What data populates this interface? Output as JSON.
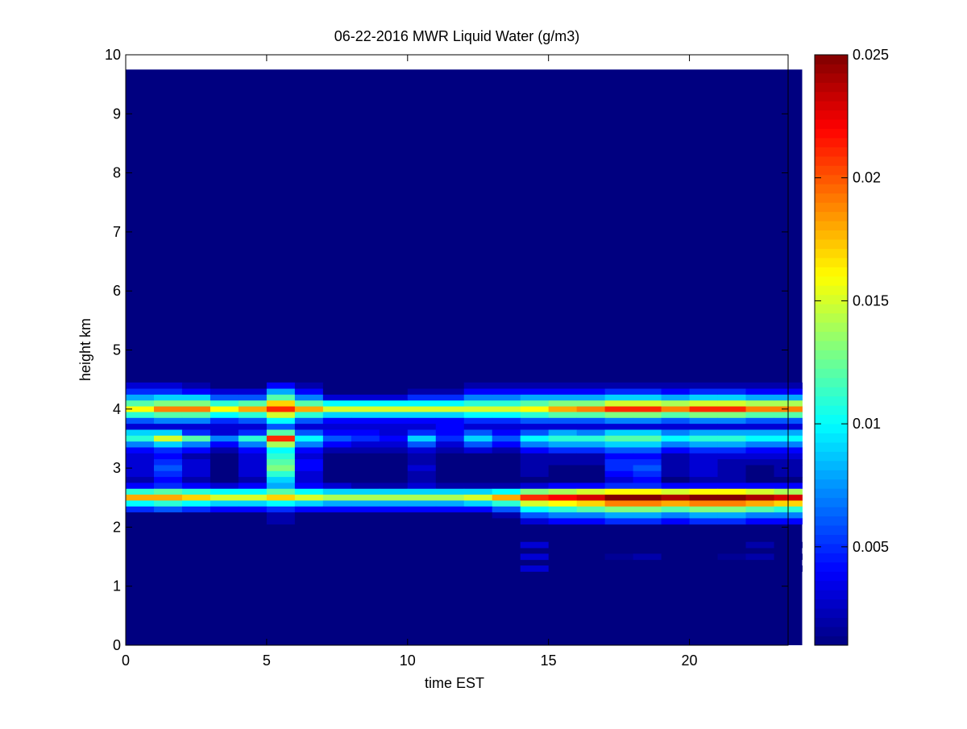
{
  "chart_data": {
    "type": "heatmap",
    "title": "06-22-2016 MWR Liquid Water (g/m3)",
    "xlabel": "time EST",
    "ylabel": "height km",
    "xlim": [
      0,
      23.5
    ],
    "ylim": [
      0,
      10
    ],
    "x_ticks": [
      "0",
      "5",
      "10",
      "15",
      "20"
    ],
    "y_ticks": [
      "0",
      "1",
      "2",
      "3",
      "4",
      "5",
      "6",
      "7",
      "8",
      "9",
      "10"
    ],
    "colormap": "jet",
    "color_range": [
      0.001,
      0.025
    ],
    "colorbar_ticks": [
      "0.005",
      "0.01",
      "0.015",
      "0.02",
      "0.025"
    ],
    "grid": false,
    "time_bins": {
      "start": 0,
      "step": 1,
      "count": 24
    },
    "data_top_km": 9.75,
    "background_value": 0.001,
    "layers": [
      {
        "height_km": 4.0,
        "values": [
          0.016,
          0.019,
          0.019,
          0.016,
          0.018,
          0.021,
          0.018,
          0.015,
          0.015,
          0.015,
          0.015,
          0.015,
          0.015,
          0.015,
          0.016,
          0.018,
          0.019,
          0.021,
          0.021,
          0.019,
          0.021,
          0.021,
          0.019,
          0.019
        ]
      },
      {
        "height_km": 4.1,
        "values": [
          0.012,
          0.013,
          0.013,
          0.011,
          0.012,
          0.017,
          0.012,
          0.01,
          0.01,
          0.01,
          0.01,
          0.01,
          0.011,
          0.011,
          0.012,
          0.013,
          0.013,
          0.015,
          0.015,
          0.014,
          0.015,
          0.015,
          0.014,
          0.014
        ]
      },
      {
        "height_km": 3.9,
        "values": [
          0.011,
          0.012,
          0.012,
          0.01,
          0.011,
          0.015,
          0.011,
          0.009,
          0.009,
          0.009,
          0.009,
          0.009,
          0.01,
          0.01,
          0.011,
          0.012,
          0.012,
          0.013,
          0.013,
          0.012,
          0.013,
          0.013,
          0.012,
          0.012
        ]
      },
      {
        "height_km": 4.2,
        "values": [
          0.008,
          0.009,
          0.009,
          0.006,
          0.006,
          0.012,
          0.007,
          0.003,
          0.003,
          0.003,
          0.005,
          0.005,
          0.007,
          0.007,
          0.008,
          0.008,
          0.008,
          0.009,
          0.009,
          0.008,
          0.009,
          0.009,
          0.008,
          0.008
        ]
      },
      {
        "height_km": 3.8,
        "values": [
          0.006,
          0.007,
          0.007,
          0.005,
          0.006,
          0.01,
          0.006,
          0.004,
          0.004,
          0.004,
          0.004,
          0.004,
          0.005,
          0.005,
          0.006,
          0.006,
          0.006,
          0.007,
          0.007,
          0.006,
          0.007,
          0.007,
          0.006,
          0.006
        ]
      },
      {
        "height_km": 4.3,
        "values": [
          0.005,
          0.005,
          0.004,
          0.003,
          0.003,
          0.008,
          0.004,
          0.001,
          0.001,
          0.001,
          0.002,
          0.002,
          0.004,
          0.004,
          0.004,
          0.004,
          0.004,
          0.005,
          0.005,
          0.004,
          0.005,
          0.005,
          0.004,
          0.004
        ]
      },
      {
        "height_km": 4.4,
        "values": [
          0.003,
          0.003,
          0.002,
          0.001,
          0.001,
          0.004,
          0.002,
          0.001,
          0.001,
          0.001,
          0.001,
          0.001,
          0.002,
          0.002,
          0.002,
          0.002,
          0.002,
          0.002,
          0.002,
          0.002,
          0.002,
          0.002,
          0.002,
          0.002
        ]
      },
      {
        "height_km": 3.7,
        "values": [
          0.003,
          0.003,
          0.003,
          0.003,
          0.003,
          0.006,
          0.003,
          0.003,
          0.003,
          0.003,
          0.003,
          0.004,
          0.003,
          0.003,
          0.003,
          0.003,
          0.003,
          0.003,
          0.003,
          0.003,
          0.003,
          0.003,
          0.003,
          0.003
        ]
      },
      {
        "height_km": 3.6,
        "values": [
          0.009,
          0.009,
          0.005,
          0.003,
          0.005,
          0.012,
          0.006,
          0.004,
          0.004,
          0.003,
          0.005,
          0.004,
          0.006,
          0.004,
          0.006,
          0.008,
          0.007,
          0.009,
          0.009,
          0.007,
          0.008,
          0.008,
          0.008,
          0.008
        ]
      },
      {
        "height_km": 3.5,
        "values": [
          0.011,
          0.015,
          0.012,
          0.007,
          0.011,
          0.021,
          0.01,
          0.006,
          0.005,
          0.004,
          0.009,
          0.005,
          0.009,
          0.006,
          0.01,
          0.011,
          0.011,
          0.012,
          0.012,
          0.01,
          0.011,
          0.011,
          0.01,
          0.01
        ]
      },
      {
        "height_km": 3.4,
        "values": [
          0.007,
          0.009,
          0.007,
          0.004,
          0.007,
          0.014,
          0.007,
          0.004,
          0.003,
          0.003,
          0.006,
          0.003,
          0.006,
          0.004,
          0.007,
          0.008,
          0.008,
          0.009,
          0.009,
          0.007,
          0.008,
          0.008,
          0.007,
          0.007
        ]
      },
      {
        "height_km": 3.3,
        "values": [
          0.004,
          0.005,
          0.004,
          0.002,
          0.004,
          0.01,
          0.004,
          0.002,
          0.002,
          0.002,
          0.003,
          0.002,
          0.003,
          0.002,
          0.004,
          0.005,
          0.005,
          0.006,
          0.006,
          0.004,
          0.005,
          0.005,
          0.004,
          0.004
        ]
      },
      {
        "height_km": 3.2,
        "values": [
          0.003,
          0.004,
          0.002,
          0.001,
          0.003,
          0.011,
          0.003,
          0.001,
          0.001,
          0.001,
          0.002,
          0.001,
          0.001,
          0.001,
          0.002,
          0.002,
          0.002,
          0.004,
          0.004,
          0.002,
          0.003,
          0.003,
          0.003,
          0.003
        ]
      },
      {
        "height_km": 3.1,
        "values": [
          0.003,
          0.005,
          0.003,
          0.001,
          0.003,
          0.012,
          0.004,
          0.001,
          0.001,
          0.001,
          0.002,
          0.001,
          0.001,
          0.001,
          0.002,
          0.002,
          0.002,
          0.005,
          0.005,
          0.002,
          0.003,
          0.002,
          0.002,
          0.002
        ]
      },
      {
        "height_km": 3.0,
        "values": [
          0.003,
          0.006,
          0.003,
          0.001,
          0.003,
          0.013,
          0.004,
          0.001,
          0.001,
          0.001,
          0.003,
          0.001,
          0.001,
          0.001,
          0.002,
          0.001,
          0.001,
          0.005,
          0.006,
          0.002,
          0.003,
          0.002,
          0.001,
          0.002
        ]
      },
      {
        "height_km": 2.9,
        "values": [
          0.003,
          0.005,
          0.003,
          0.001,
          0.003,
          0.011,
          0.003,
          0.001,
          0.001,
          0.001,
          0.002,
          0.001,
          0.001,
          0.001,
          0.002,
          0.001,
          0.001,
          0.004,
          0.005,
          0.002,
          0.003,
          0.002,
          0.001,
          0.002
        ]
      },
      {
        "height_km": 2.8,
        "values": [
          0.002,
          0.004,
          0.002,
          0.001,
          0.002,
          0.009,
          0.003,
          0.001,
          0.001,
          0.001,
          0.002,
          0.001,
          0.001,
          0.001,
          0.001,
          0.001,
          0.001,
          0.003,
          0.004,
          0.001,
          0.002,
          0.002,
          0.001,
          0.001
        ]
      },
      {
        "height_km": 2.7,
        "values": [
          0.004,
          0.005,
          0.004,
          0.003,
          0.004,
          0.008,
          0.004,
          0.003,
          0.002,
          0.002,
          0.003,
          0.002,
          0.002,
          0.002,
          0.003,
          0.004,
          0.004,
          0.005,
          0.005,
          0.004,
          0.004,
          0.004,
          0.004,
          0.004
        ]
      },
      {
        "height_km": 2.6,
        "values": [
          0.011,
          0.012,
          0.011,
          0.01,
          0.01,
          0.012,
          0.01,
          0.009,
          0.009,
          0.009,
          0.009,
          0.009,
          0.009,
          0.01,
          0.013,
          0.014,
          0.015,
          0.016,
          0.016,
          0.015,
          0.016,
          0.016,
          0.015,
          0.014
        ]
      },
      {
        "height_km": 2.5,
        "values": [
          0.018,
          0.018,
          0.017,
          0.015,
          0.015,
          0.017,
          0.015,
          0.014,
          0.014,
          0.014,
          0.014,
          0.014,
          0.015,
          0.018,
          0.021,
          0.022,
          0.023,
          0.025,
          0.025,
          0.024,
          0.025,
          0.025,
          0.024,
          0.023
        ]
      },
      {
        "height_km": 2.4,
        "values": [
          0.01,
          0.011,
          0.01,
          0.009,
          0.009,
          0.01,
          0.009,
          0.008,
          0.008,
          0.008,
          0.008,
          0.008,
          0.009,
          0.011,
          0.015,
          0.016,
          0.017,
          0.019,
          0.019,
          0.018,
          0.019,
          0.019,
          0.018,
          0.017
        ]
      },
      {
        "height_km": 2.3,
        "values": [
          0.005,
          0.006,
          0.005,
          0.004,
          0.004,
          0.005,
          0.004,
          0.004,
          0.004,
          0.004,
          0.004,
          0.004,
          0.004,
          0.006,
          0.01,
          0.011,
          0.012,
          0.013,
          0.013,
          0.012,
          0.013,
          0.013,
          0.012,
          0.011
        ]
      },
      {
        "height_km": 2.2,
        "values": [
          0.001,
          0.001,
          0.001,
          0.001,
          0.001,
          0.002,
          0.001,
          0.001,
          0.001,
          0.001,
          0.001,
          0.001,
          0.001,
          0.002,
          0.006,
          0.007,
          0.007,
          0.008,
          0.008,
          0.007,
          0.008,
          0.008,
          0.007,
          0.007
        ]
      },
      {
        "height_km": 2.1,
        "values": [
          0.001,
          0.001,
          0.001,
          0.001,
          0.001,
          0.002,
          0.001,
          0.001,
          0.001,
          0.001,
          0.001,
          0.001,
          0.001,
          0.001,
          0.003,
          0.004,
          0.004,
          0.005,
          0.005,
          0.004,
          0.005,
          0.005,
          0.004,
          0.004
        ]
      },
      {
        "height_km": 1.7,
        "values": [
          0.001,
          0.001,
          0.001,
          0.001,
          0.001,
          0.001,
          0.001,
          0.001,
          0.001,
          0.001,
          0.001,
          0.001,
          0.001,
          0.001,
          0.003,
          0.001,
          0.001,
          0.001,
          0.001,
          0.001,
          0.001,
          0.001,
          0.002,
          0.001
        ]
      },
      {
        "height_km": 1.5,
        "values": [
          0.001,
          0.001,
          0.001,
          0.001,
          0.001,
          0.001,
          0.001,
          0.001,
          0.001,
          0.001,
          0.001,
          0.001,
          0.001,
          0.001,
          0.003,
          0.001,
          0.001,
          0.0015,
          0.002,
          0.001,
          0.001,
          0.0015,
          0.002,
          0.001
        ]
      },
      {
        "height_km": 1.3,
        "values": [
          0.001,
          0.001,
          0.001,
          0.001,
          0.001,
          0.001,
          0.001,
          0.001,
          0.001,
          0.001,
          0.001,
          0.001,
          0.001,
          0.001,
          0.003,
          0.001,
          0.001,
          0.001,
          0.001,
          0.001,
          0.001,
          0.001,
          0.001,
          0.001
        ]
      }
    ]
  }
}
